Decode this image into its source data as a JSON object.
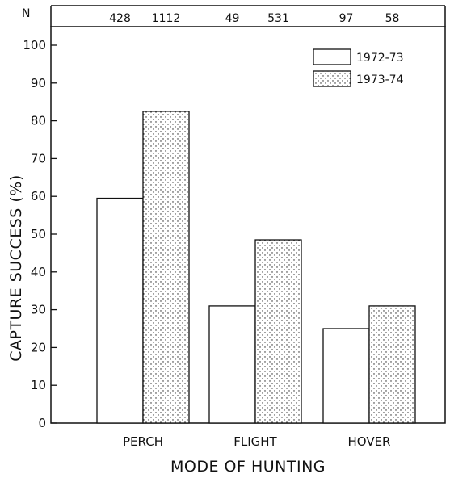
{
  "chart_data": {
    "type": "bar",
    "categories": [
      "PERCH",
      "FLIGHT",
      "HOVER"
    ],
    "series": [
      {
        "name": "1972-73",
        "values": [
          59.5,
          31,
          25
        ],
        "n": [
          "428",
          "49",
          "97"
        ]
      },
      {
        "name": "1973-74",
        "values": [
          82.5,
          48.5,
          31
        ],
        "n": [
          "1112",
          "531",
          "58"
        ]
      }
    ],
    "n_header": "N",
    "xlabel": "MODE OF HUNTING",
    "ylabel": "CAPTURE SUCCESS (%)",
    "ylim": [
      0,
      105
    ],
    "yticks": [
      0,
      10,
      20,
      30,
      40,
      50,
      60,
      70,
      80,
      90,
      100
    ],
    "legend_position": "top-right",
    "grid": false
  },
  "colors": {
    "ink": "#111111",
    "open_fill": "#ffffff",
    "stipple_bg": "#ffffff",
    "stipple_dot": "#222222"
  }
}
